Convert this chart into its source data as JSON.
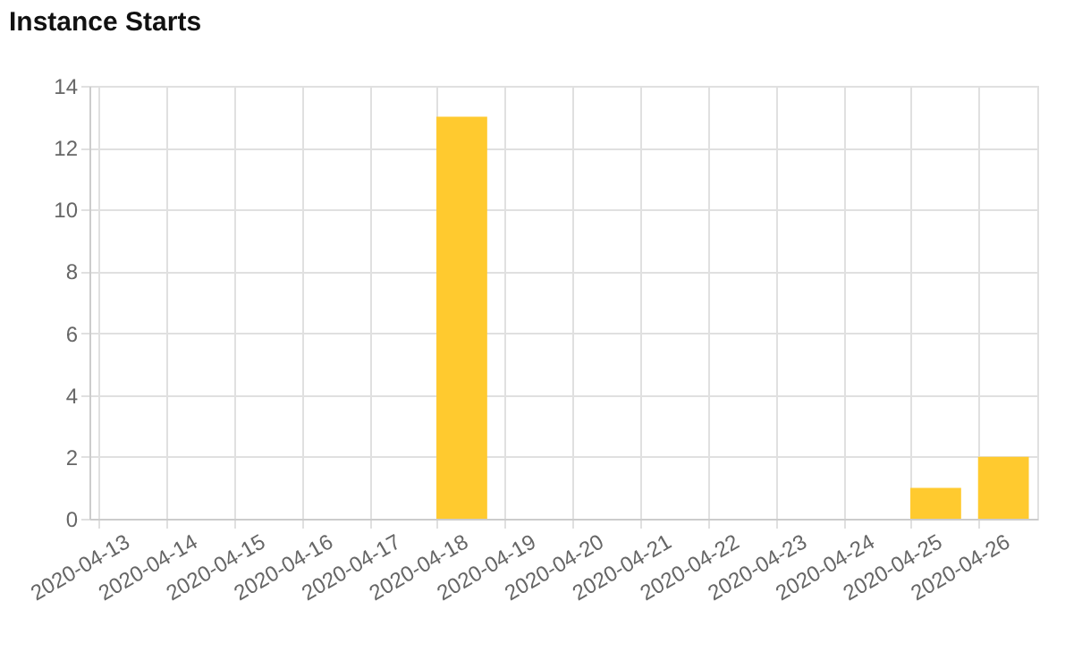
{
  "chart_data": {
    "type": "bar",
    "title": "Instance Starts",
    "categories": [
      "2020-04-13",
      "2020-04-14",
      "2020-04-15",
      "2020-04-16",
      "2020-04-17",
      "2020-04-18",
      "2020-04-19",
      "2020-04-20",
      "2020-04-21",
      "2020-04-22",
      "2020-04-23",
      "2020-04-24",
      "2020-04-25",
      "2020-04-26"
    ],
    "values": [
      0,
      0,
      0,
      0,
      0,
      13,
      0,
      0,
      0,
      0,
      0,
      0,
      1,
      2
    ],
    "color": "#ffca2f",
    "ylim": [
      0,
      14
    ],
    "yticks": [
      0,
      2,
      4,
      6,
      8,
      10,
      12,
      14
    ],
    "grid": true
  }
}
